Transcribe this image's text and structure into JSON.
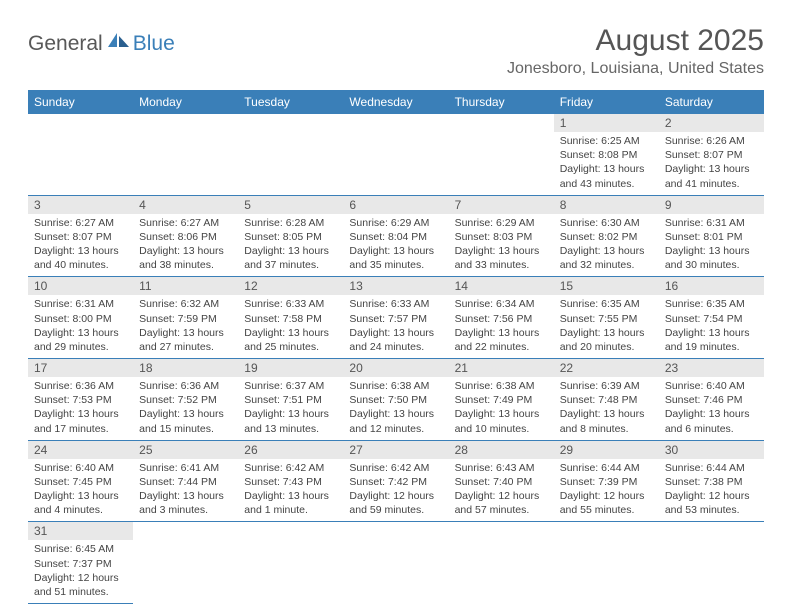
{
  "logo": {
    "text1": "General",
    "text2": "Blue"
  },
  "title": "August 2025",
  "location": "Jonesboro, Louisiana, United States",
  "colors": {
    "header_bg": "#3a7fb8",
    "header_text": "#ffffff",
    "daynum_bg": "#e8e8e8",
    "border": "#3a7fb8",
    "body_text": "#444444"
  },
  "day_headers": [
    "Sunday",
    "Monday",
    "Tuesday",
    "Wednesday",
    "Thursday",
    "Friday",
    "Saturday"
  ],
  "weeks": [
    [
      null,
      null,
      null,
      null,
      null,
      {
        "n": "1",
        "sunrise": "6:25 AM",
        "sunset": "8:08 PM",
        "daylight": "13 hours and 43 minutes."
      },
      {
        "n": "2",
        "sunrise": "6:26 AM",
        "sunset": "8:07 PM",
        "daylight": "13 hours and 41 minutes."
      }
    ],
    [
      {
        "n": "3",
        "sunrise": "6:27 AM",
        "sunset": "8:07 PM",
        "daylight": "13 hours and 40 minutes."
      },
      {
        "n": "4",
        "sunrise": "6:27 AM",
        "sunset": "8:06 PM",
        "daylight": "13 hours and 38 minutes."
      },
      {
        "n": "5",
        "sunrise": "6:28 AM",
        "sunset": "8:05 PM",
        "daylight": "13 hours and 37 minutes."
      },
      {
        "n": "6",
        "sunrise": "6:29 AM",
        "sunset": "8:04 PM",
        "daylight": "13 hours and 35 minutes."
      },
      {
        "n": "7",
        "sunrise": "6:29 AM",
        "sunset": "8:03 PM",
        "daylight": "13 hours and 33 minutes."
      },
      {
        "n": "8",
        "sunrise": "6:30 AM",
        "sunset": "8:02 PM",
        "daylight": "13 hours and 32 minutes."
      },
      {
        "n": "9",
        "sunrise": "6:31 AM",
        "sunset": "8:01 PM",
        "daylight": "13 hours and 30 minutes."
      }
    ],
    [
      {
        "n": "10",
        "sunrise": "6:31 AM",
        "sunset": "8:00 PM",
        "daylight": "13 hours and 29 minutes."
      },
      {
        "n": "11",
        "sunrise": "6:32 AM",
        "sunset": "7:59 PM",
        "daylight": "13 hours and 27 minutes."
      },
      {
        "n": "12",
        "sunrise": "6:33 AM",
        "sunset": "7:58 PM",
        "daylight": "13 hours and 25 minutes."
      },
      {
        "n": "13",
        "sunrise": "6:33 AM",
        "sunset": "7:57 PM",
        "daylight": "13 hours and 24 minutes."
      },
      {
        "n": "14",
        "sunrise": "6:34 AM",
        "sunset": "7:56 PM",
        "daylight": "13 hours and 22 minutes."
      },
      {
        "n": "15",
        "sunrise": "6:35 AM",
        "sunset": "7:55 PM",
        "daylight": "13 hours and 20 minutes."
      },
      {
        "n": "16",
        "sunrise": "6:35 AM",
        "sunset": "7:54 PM",
        "daylight": "13 hours and 19 minutes."
      }
    ],
    [
      {
        "n": "17",
        "sunrise": "6:36 AM",
        "sunset": "7:53 PM",
        "daylight": "13 hours and 17 minutes."
      },
      {
        "n": "18",
        "sunrise": "6:36 AM",
        "sunset": "7:52 PM",
        "daylight": "13 hours and 15 minutes."
      },
      {
        "n": "19",
        "sunrise": "6:37 AM",
        "sunset": "7:51 PM",
        "daylight": "13 hours and 13 minutes."
      },
      {
        "n": "20",
        "sunrise": "6:38 AM",
        "sunset": "7:50 PM",
        "daylight": "13 hours and 12 minutes."
      },
      {
        "n": "21",
        "sunrise": "6:38 AM",
        "sunset": "7:49 PM",
        "daylight": "13 hours and 10 minutes."
      },
      {
        "n": "22",
        "sunrise": "6:39 AM",
        "sunset": "7:48 PM",
        "daylight": "13 hours and 8 minutes."
      },
      {
        "n": "23",
        "sunrise": "6:40 AM",
        "sunset": "7:46 PM",
        "daylight": "13 hours and 6 minutes."
      }
    ],
    [
      {
        "n": "24",
        "sunrise": "6:40 AM",
        "sunset": "7:45 PM",
        "daylight": "13 hours and 4 minutes."
      },
      {
        "n": "25",
        "sunrise": "6:41 AM",
        "sunset": "7:44 PM",
        "daylight": "13 hours and 3 minutes."
      },
      {
        "n": "26",
        "sunrise": "6:42 AM",
        "sunset": "7:43 PM",
        "daylight": "13 hours and 1 minute."
      },
      {
        "n": "27",
        "sunrise": "6:42 AM",
        "sunset": "7:42 PM",
        "daylight": "12 hours and 59 minutes."
      },
      {
        "n": "28",
        "sunrise": "6:43 AM",
        "sunset": "7:40 PM",
        "daylight": "12 hours and 57 minutes."
      },
      {
        "n": "29",
        "sunrise": "6:44 AM",
        "sunset": "7:39 PM",
        "daylight": "12 hours and 55 minutes."
      },
      {
        "n": "30",
        "sunrise": "6:44 AM",
        "sunset": "7:38 PM",
        "daylight": "12 hours and 53 minutes."
      }
    ],
    [
      {
        "n": "31",
        "sunrise": "6:45 AM",
        "sunset": "7:37 PM",
        "daylight": "12 hours and 51 minutes."
      },
      null,
      null,
      null,
      null,
      null,
      null
    ]
  ],
  "labels": {
    "sunrise": "Sunrise: ",
    "sunset": "Sunset: ",
    "daylight": "Daylight: "
  }
}
